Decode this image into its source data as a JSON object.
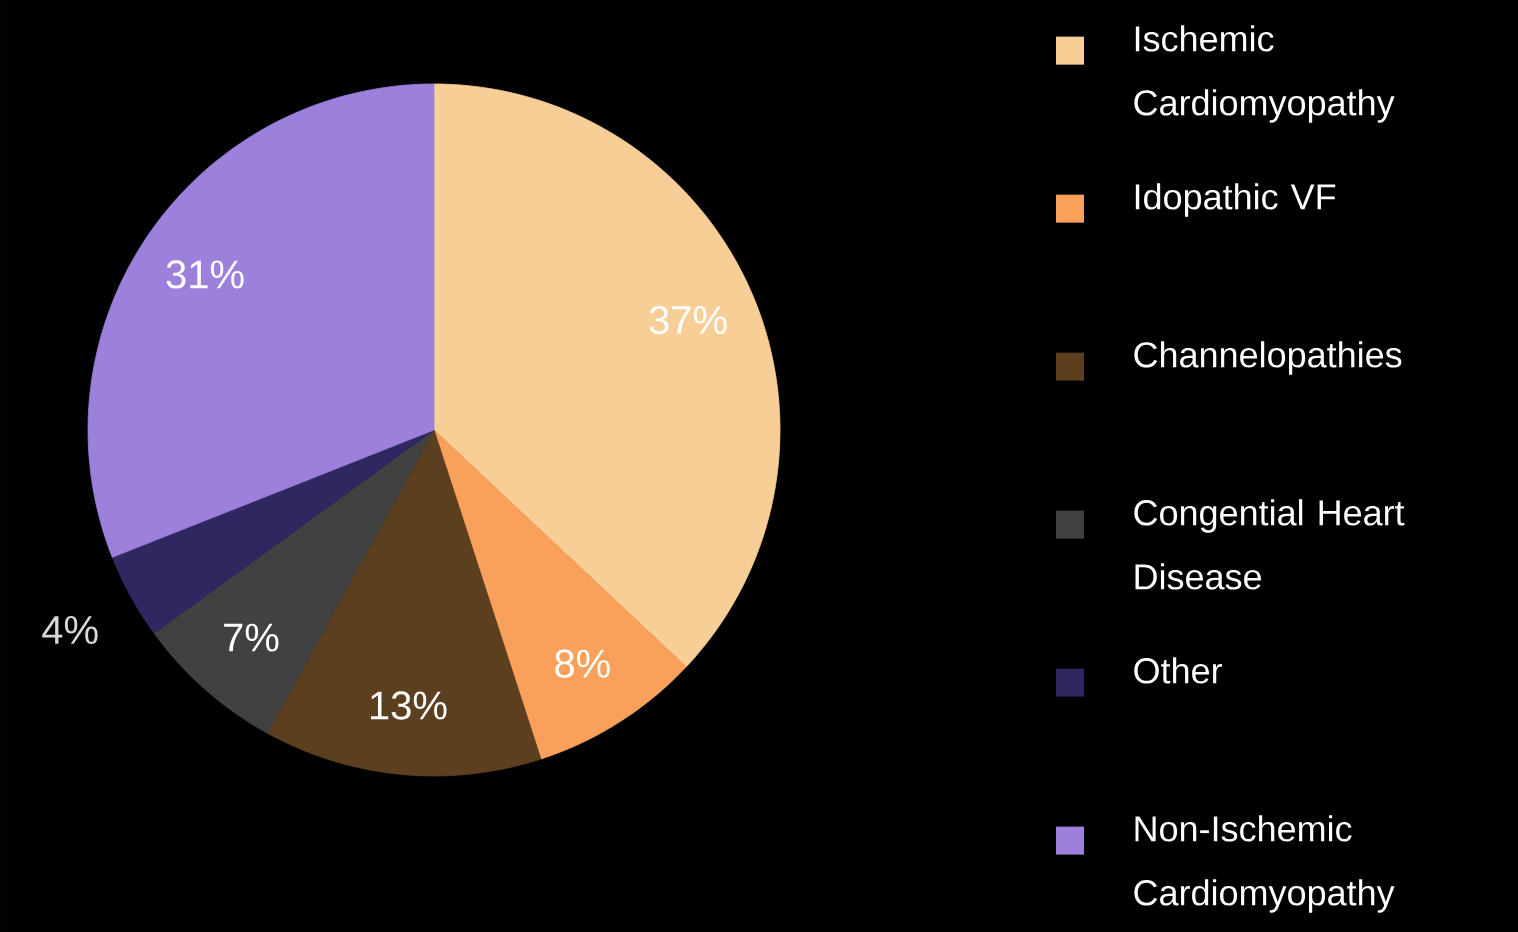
{
  "chart_data": {
    "type": "pie",
    "categories": [
      "Ischemic Cardiomyopathy",
      "Idopathic VF",
      "Channelopathies",
      "Congential Heart Disease",
      "Other",
      "Non-Ischemic Cardiomyopathy"
    ],
    "values": [
      37,
      8,
      13,
      7,
      4,
      31
    ],
    "colors": [
      "#f7cf96",
      "#f9a15b",
      "#5b3f1f",
      "#414141",
      "#2f2860",
      "#9c80dc"
    ],
    "value_labels": [
      "37%",
      "8%",
      "13%",
      "7%",
      "4%",
      "31%"
    ],
    "legend": "right"
  }
}
